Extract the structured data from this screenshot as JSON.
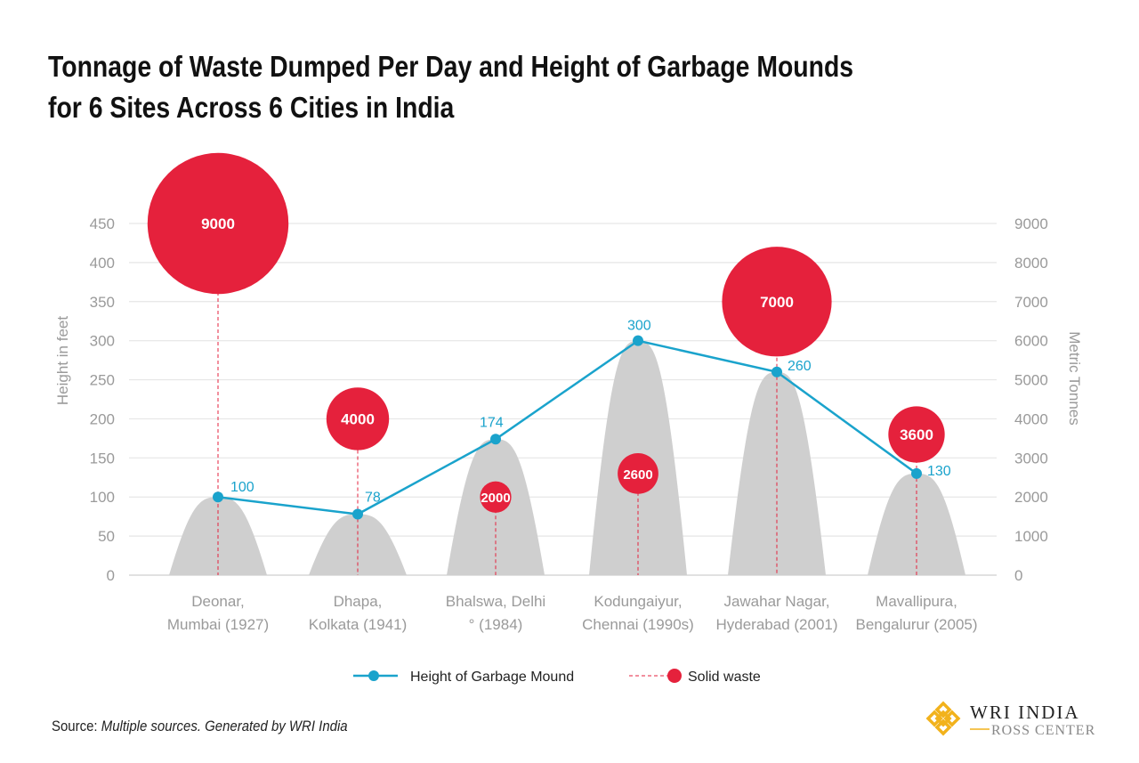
{
  "title_line1": "Tonnage of Waste Dumped Per Day and Height of Garbage Mounds",
  "title_line2": "for 6 Sites Across 6 Cities in India",
  "source_label": "Source:",
  "source_text": "Multiple sources. Generated by WRI India",
  "logo": {
    "line1": "WRI INDIA",
    "line2": "ROSS CENTER"
  },
  "chart_data": {
    "type": "bar+line+bubble",
    "categories": [
      [
        "Deonar,",
        "Mumbai (1927)"
      ],
      [
        "Dhapa,",
        "Kolkata (1941)"
      ],
      [
        "Bhalswa, Delhi",
        "° (1984)"
      ],
      [
        "Kodungaiyur,",
        "Chennai (1990s)"
      ],
      [
        "Jawahar Nagar,",
        "Hyderabad (2001)"
      ],
      [
        "Mavallipura,",
        "Bengalurur (2005)"
      ]
    ],
    "series": [
      {
        "name": "Height of Garbage Mound",
        "axis": "left",
        "values": [
          100,
          78,
          174,
          300,
          260,
          130
        ],
        "color": "#1aa3cc"
      },
      {
        "name": "Solid waste",
        "axis": "right",
        "values": [
          9000,
          4000,
          2000,
          2600,
          7000,
          3600
        ],
        "color": "#e5213c"
      }
    ],
    "mound_color": "#cfcfcf",
    "ylabel_left": "Height in feet",
    "ylabel_right": "Metric Tonnes",
    "ylim_left": [
      0,
      450
    ],
    "ylim_right": [
      0,
      9000
    ],
    "yticks_left": [
      0,
      50,
      100,
      150,
      200,
      250,
      300,
      350,
      400,
      450
    ],
    "yticks_right": [
      0,
      1000,
      2000,
      3000,
      4000,
      5000,
      6000,
      7000,
      8000,
      9000
    ],
    "grid": true,
    "legend_position": "bottom"
  }
}
